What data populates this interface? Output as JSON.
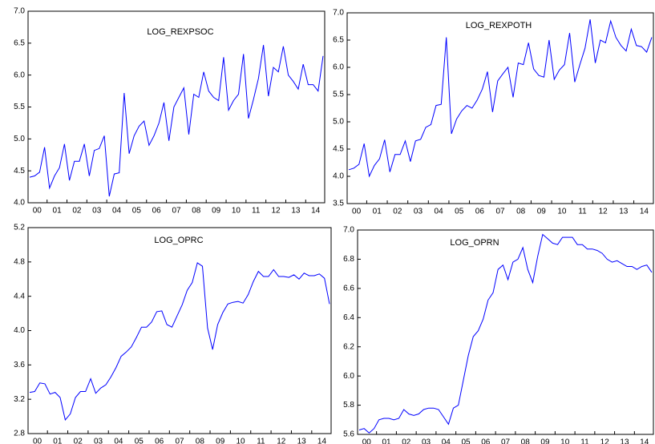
{
  "chart_data": [
    {
      "type": "line",
      "title": "LOG_REXPSOC",
      "color": "#0000ff",
      "categories": [
        "00",
        null,
        null,
        null,
        "01",
        null,
        null,
        null,
        "02",
        null,
        null,
        null,
        "03",
        null,
        null,
        null,
        "04",
        null,
        null,
        null,
        "05",
        null,
        null,
        null,
        "06",
        null,
        null,
        null,
        "07",
        null,
        null,
        null,
        "08",
        null,
        null,
        null,
        "09",
        null,
        null,
        null,
        "10",
        null,
        null,
        null,
        "11",
        null,
        null,
        null,
        "12",
        null,
        null,
        null,
        "13",
        null,
        null,
        null,
        "14",
        null,
        null,
        null
      ],
      "values": [
        4.4,
        4.42,
        4.48,
        4.87,
        4.23,
        4.42,
        4.55,
        4.92,
        4.35,
        4.65,
        4.65,
        4.92,
        4.42,
        4.82,
        4.85,
        5.05,
        4.1,
        4.45,
        4.47,
        5.72,
        4.77,
        5.05,
        5.2,
        5.28,
        4.9,
        5.05,
        5.25,
        5.57,
        4.97,
        5.5,
        5.65,
        5.8,
        5.07,
        5.7,
        5.65,
        6.05,
        5.75,
        5.65,
        5.6,
        6.28,
        5.45,
        5.6,
        5.7,
        6.33,
        5.32,
        5.62,
        5.95,
        6.47,
        5.67,
        6.12,
        6.05,
        6.45,
        6.0,
        5.9,
        5.78,
        6.17,
        5.85,
        5.85,
        5.75,
        6.3
      ],
      "ylim": [
        4.0,
        7.0
      ],
      "yticks": [
        {
          "value": 4.0,
          "label": "4.0"
        },
        4.5,
        {
          "value": 5.0,
          "label": "5.0"
        },
        5.5,
        {
          "value": 6.0,
          "label": "6.0"
        },
        6.5,
        {
          "value": 7.0,
          "label": "7.0"
        }
      ]
    },
    {
      "type": "line",
      "title": "LOG_REXPOTH",
      "color": "#0000ff",
      "categories": [
        "00",
        null,
        null,
        null,
        "01",
        null,
        null,
        null,
        "02",
        null,
        null,
        null,
        "03",
        null,
        null,
        null,
        "04",
        null,
        null,
        null,
        "05",
        null,
        null,
        null,
        "06",
        null,
        null,
        null,
        "07",
        null,
        null,
        null,
        "08",
        null,
        null,
        null,
        "09",
        null,
        null,
        null,
        "10",
        null,
        null,
        null,
        "11",
        null,
        null,
        null,
        "12",
        null,
        null,
        null,
        "13",
        null,
        null,
        null,
        "14",
        null,
        null,
        null
      ],
      "values": [
        4.12,
        4.15,
        4.22,
        4.6,
        4.0,
        4.2,
        4.32,
        4.67,
        4.08,
        4.4,
        4.4,
        4.65,
        4.27,
        4.65,
        4.68,
        4.9,
        4.95,
        5.3,
        5.32,
        6.55,
        4.78,
        5.05,
        5.2,
        5.3,
        5.25,
        5.4,
        5.6,
        5.92,
        5.18,
        5.75,
        5.88,
        6.0,
        5.45,
        6.08,
        6.05,
        6.45,
        5.97,
        5.85,
        5.82,
        6.5,
        5.78,
        5.95,
        6.05,
        6.63,
        5.73,
        6.05,
        6.35,
        6.88,
        6.08,
        6.5,
        6.45,
        6.85,
        6.55,
        6.4,
        6.3,
        6.7,
        6.4,
        6.38,
        6.28,
        6.55
      ],
      "ylim": [
        3.5,
        7.0
      ],
      "yticks": [
        3.5,
        {
          "value": 4.0,
          "label": "4.0"
        },
        4.5,
        {
          "value": 5.0,
          "label": "5.0"
        },
        5.5,
        {
          "value": 6.0,
          "label": "6.0"
        },
        6.5,
        {
          "value": 7.0,
          "label": "7.0"
        }
      ]
    },
    {
      "type": "line",
      "title": "LOG_OPRC",
      "color": "#0000ff",
      "categories": [
        "00",
        null,
        null,
        null,
        "01",
        null,
        null,
        null,
        "02",
        null,
        null,
        null,
        "03",
        null,
        null,
        null,
        "04",
        null,
        null,
        null,
        "05",
        null,
        null,
        null,
        "06",
        null,
        null,
        null,
        "07",
        null,
        null,
        null,
        "08",
        null,
        null,
        null,
        "09",
        null,
        null,
        null,
        "10",
        null,
        null,
        null,
        "11",
        null,
        null,
        null,
        "12",
        null,
        null,
        null,
        "13",
        null,
        null,
        null,
        "14",
        null,
        null,
        null
      ],
      "values": [
        3.28,
        3.29,
        3.39,
        3.38,
        3.26,
        3.28,
        3.22,
        2.96,
        3.03,
        3.22,
        3.29,
        3.29,
        3.44,
        3.27,
        3.33,
        3.37,
        3.46,
        3.57,
        3.7,
        3.75,
        3.81,
        3.92,
        4.04,
        4.04,
        4.1,
        4.22,
        4.23,
        4.07,
        4.04,
        4.17,
        4.3,
        4.47,
        4.56,
        4.79,
        4.75,
        4.03,
        3.78,
        4.07,
        4.21,
        4.31,
        4.33,
        4.34,
        4.32,
        4.42,
        4.57,
        4.69,
        4.63,
        4.63,
        4.71,
        4.63,
        4.63,
        4.62,
        4.65,
        4.6,
        4.67,
        4.64,
        4.64,
        4.66,
        4.61,
        4.31
      ],
      "ylim": [
        2.8,
        5.2
      ],
      "yticks": [
        2.8,
        3.2,
        3.6,
        {
          "value": 4.0,
          "label": "4.0"
        },
        4.4,
        4.8,
        5.2
      ]
    },
    {
      "type": "line",
      "title": "LOG_OPRN",
      "color": "#0000ff",
      "categories": [
        "00",
        null,
        null,
        null,
        "01",
        null,
        null,
        null,
        "02",
        null,
        null,
        null,
        "03",
        null,
        null,
        null,
        "04",
        null,
        null,
        null,
        "05",
        null,
        null,
        null,
        "06",
        null,
        null,
        null,
        "07",
        null,
        null,
        null,
        "08",
        null,
        null,
        null,
        "09",
        null,
        null,
        null,
        "10",
        null,
        null,
        null,
        "11",
        null,
        null,
        null,
        "12",
        null,
        null,
        null,
        "13",
        null,
        null,
        null,
        "14",
        null,
        null,
        null
      ],
      "values": [
        5.63,
        5.64,
        5.61,
        5.64,
        5.7,
        5.71,
        5.71,
        5.7,
        5.71,
        5.77,
        5.74,
        5.73,
        5.74,
        5.77,
        5.78,
        5.78,
        5.77,
        5.72,
        5.67,
        5.78,
        5.8,
        5.97,
        6.14,
        6.27,
        6.31,
        6.39,
        6.52,
        6.57,
        6.73,
        6.76,
        6.66,
        6.78,
        6.8,
        6.88,
        6.73,
        6.64,
        6.82,
        6.97,
        6.94,
        6.91,
        6.9,
        6.95,
        6.95,
        6.95,
        6.9,
        6.9,
        6.87,
        6.87,
        6.86,
        6.84,
        6.8,
        6.78,
        6.79,
        6.77,
        6.75,
        6.75,
        6.73,
        6.75,
        6.76,
        6.71
      ],
      "ylim": [
        5.6,
        7.0
      ],
      "yticks": [
        5.6,
        5.8,
        {
          "value": 6.0,
          "label": "6.0"
        },
        6.2,
        6.4,
        6.6,
        6.8,
        {
          "value": 7.0,
          "label": "7.0"
        }
      ]
    }
  ]
}
